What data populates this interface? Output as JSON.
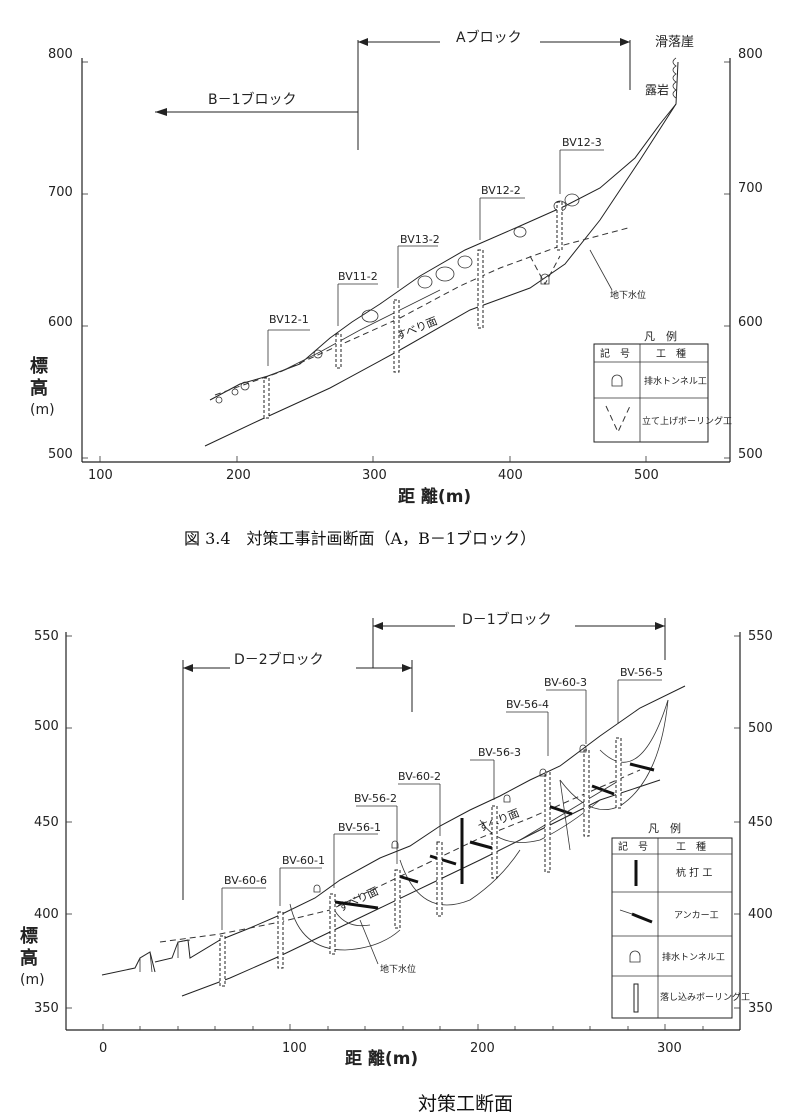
{
  "fig1": {
    "block_a": "Aブロック",
    "block_b1": "B－1ブロック",
    "cliff": "滑落崖",
    "rock": "露岩",
    "y_ticks_left": [
      "800",
      "700",
      "600",
      "500"
    ],
    "y_ticks_right": [
      "800",
      "700",
      "600",
      "500"
    ],
    "x_ticks": [
      "100",
      "200",
      "300",
      "400",
      "500"
    ],
    "ylabel": [
      "標",
      "高",
      "(m)"
    ],
    "xlabel": "距 離(m)",
    "boreholes": [
      "BV12-1",
      "BV11-2",
      "BV13-2",
      "BV12-2",
      "BV12-3"
    ],
    "slip_label": "すべり面",
    "gw_label": "地下水位",
    "legend": {
      "title": "凡　例",
      "col1": "記　号",
      "col2": "工　種",
      "rows": [
        "排水トンネル工",
        "立て上げボーリング工"
      ]
    },
    "caption": "図 3.4　対策工事計画断面（A，B－1ブロック）"
  },
  "fig2": {
    "block_d1": "D－1ブロック",
    "block_d2": "D－2ブロック",
    "y_ticks_left": [
      "550",
      "500",
      "450",
      "400",
      "350"
    ],
    "y_ticks_right": [
      "550",
      "500",
      "450",
      "400",
      "350"
    ],
    "x_ticks": [
      "0",
      "100",
      "200",
      "300"
    ],
    "ylabel": [
      "標",
      "高",
      "(m)"
    ],
    "xlabel": "距 離(m)",
    "boreholes": [
      "BV-60-6",
      "BV-60-1",
      "BV-56-1",
      "BV-56-2",
      "BV-60-2",
      "BV-56-3",
      "BV-56-4",
      "BV-60-3",
      "BV-56-5"
    ],
    "slip_label_1": "すべり面",
    "slip_label_2": "すべり面",
    "gw_label": "地下水位",
    "legend": {
      "title": "凡　例",
      "col1": "記　号",
      "col2": "工　種",
      "rows": [
        "杭 打 工",
        "アンカー工",
        "排水トンネル工",
        "落し込みボーリング工"
      ]
    },
    "caption": "対策工断面"
  }
}
